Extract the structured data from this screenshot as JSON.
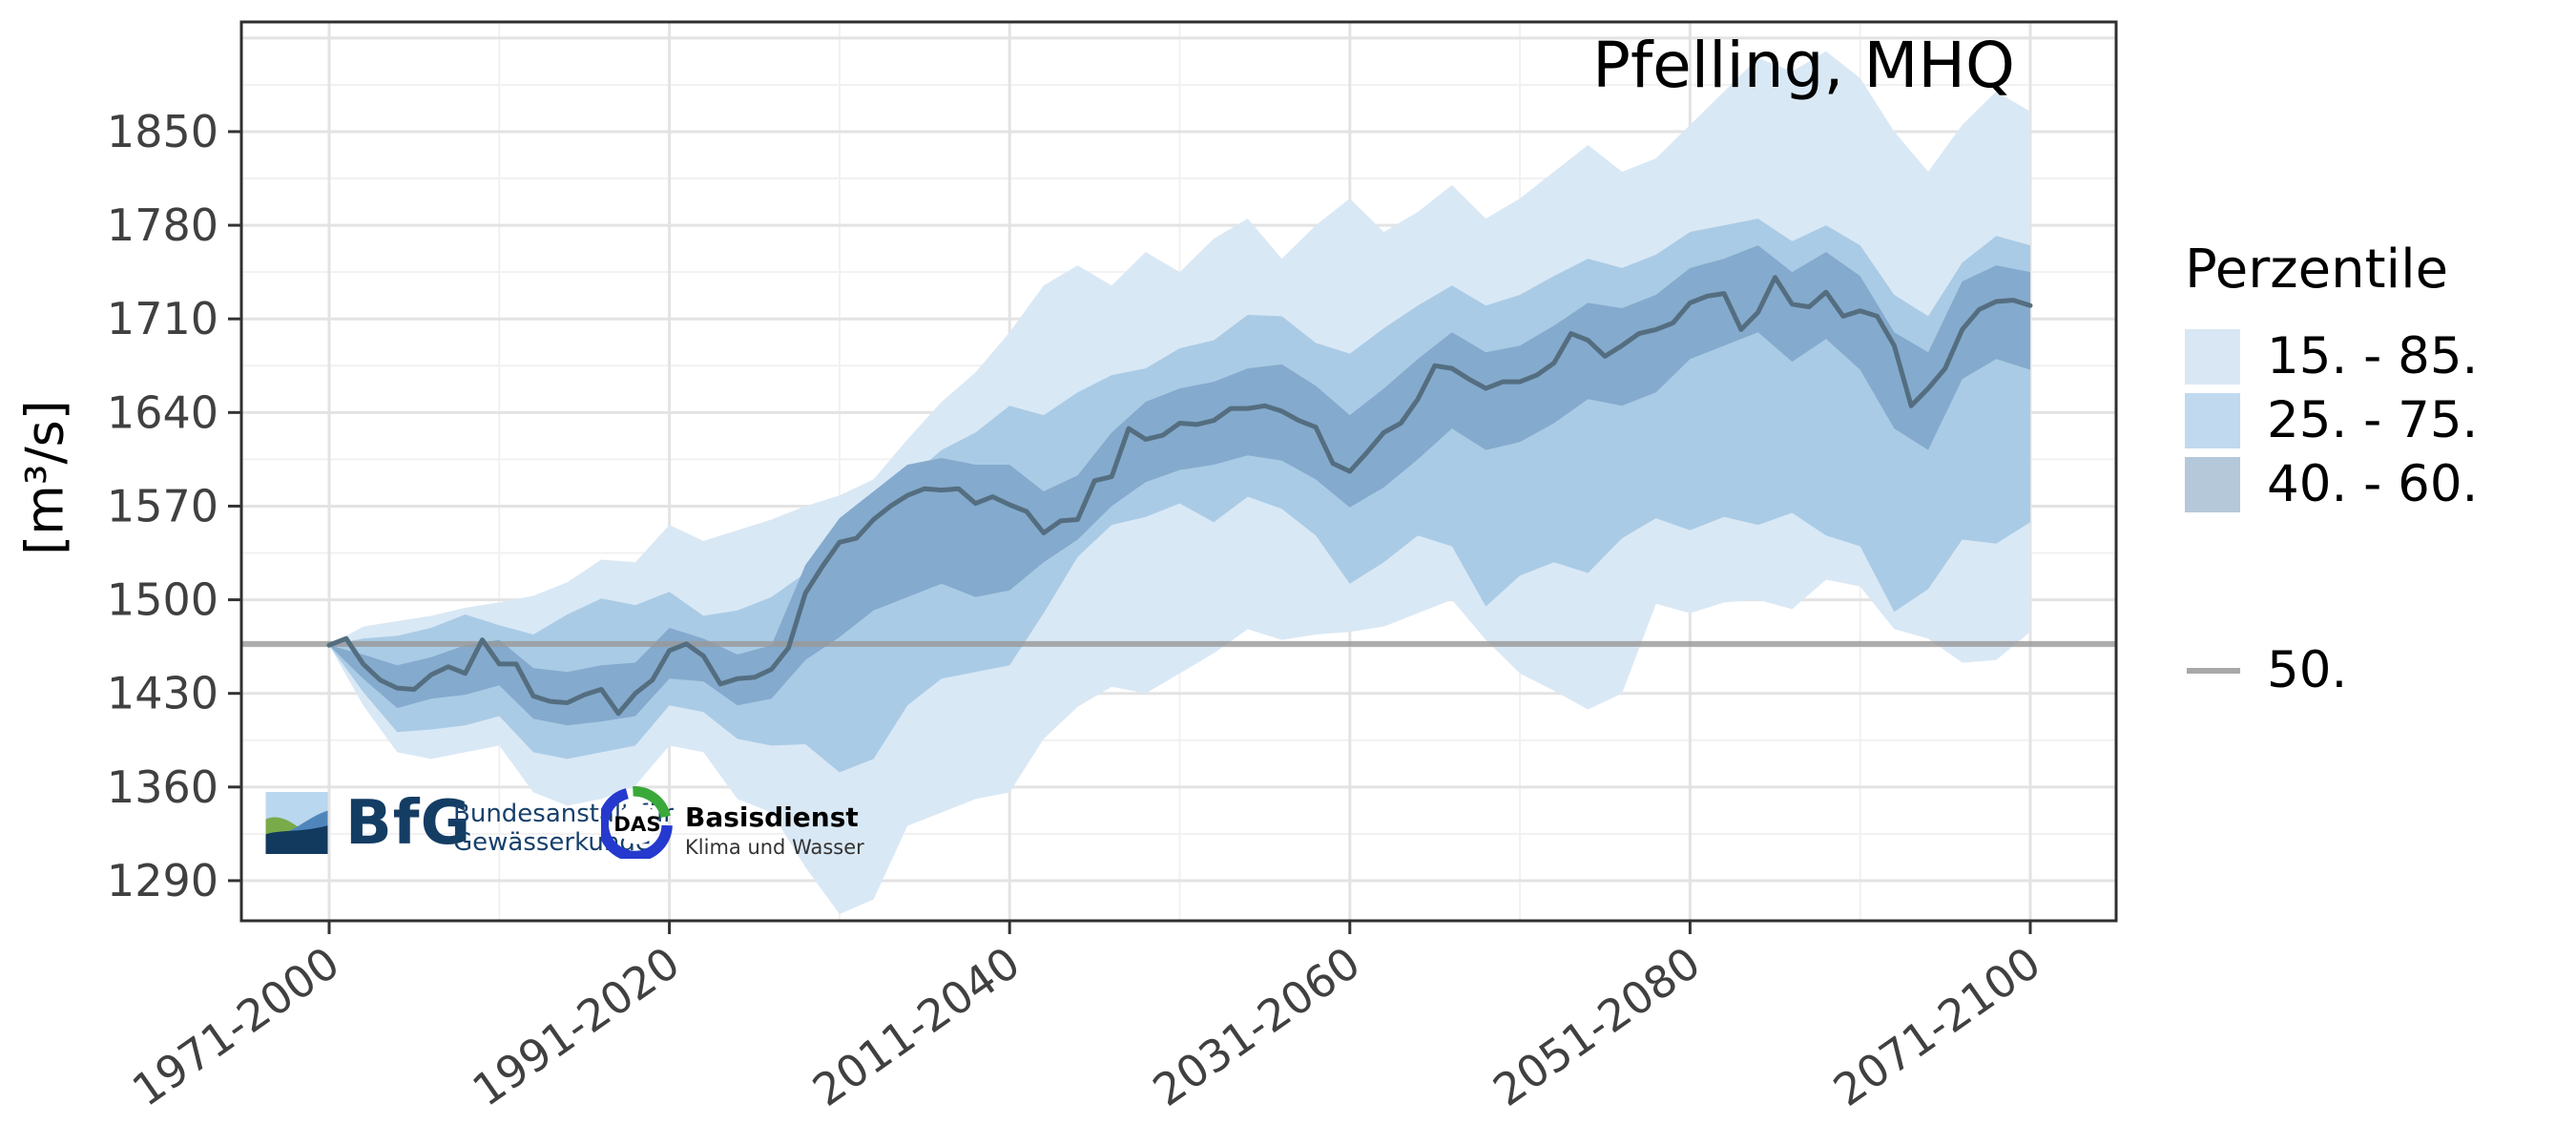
{
  "title": "Pfelling, MHQ",
  "y_axis": {
    "label": "[m³/s]"
  },
  "legend": {
    "title": "Perzentile",
    "items": [
      {
        "label": "15. - 85.",
        "color": "#d9e7f4"
      },
      {
        "label": "25. - 75.",
        "color": "#c1d9ee"
      },
      {
        "label": "40. - 60.",
        "color": "#b4c8da"
      }
    ],
    "line_item": {
      "label": "50.",
      "color": "#a8a8a8"
    }
  },
  "logos": {
    "bfg": {
      "abbr": "BfG",
      "line1": "Bundesanstalt für",
      "line2": "Gewässerkunde"
    },
    "das": {
      "abbr": "DAS",
      "line1": "Basisdienst",
      "line2": "Klima und Wasser"
    }
  },
  "colors": {
    "band_outer": "#d9e8f5",
    "band_middle": "#aacbe5",
    "band_inner": "#84aacd",
    "median_line": "#546e80",
    "reference_line": "#999999",
    "grid_major": "#e3e3e3",
    "grid_minor": "#f1f1f1",
    "panel_border": "#2f2f2f",
    "axis_text": "#404040"
  },
  "chart_data": {
    "type": "area",
    "title": "Pfelling, MHQ",
    "ylabel": "[m³/s]",
    "ylim": [
      1260,
      1932
    ],
    "y_ticks": [
      1290,
      1360,
      1430,
      1500,
      1570,
      1640,
      1710,
      1780,
      1850
    ],
    "x_axis": {
      "description": "30-year moving windows, index 0 = 1971-2000 to index 100 = 2071-2100",
      "index_range": [
        0,
        100
      ],
      "tick_indices": [
        0,
        20,
        40,
        60,
        80,
        100
      ],
      "tick_labels": [
        "1971-2000",
        "1991-2020",
        "2011-2040",
        "2031-2060",
        "2051-2080",
        "2071-2100"
      ]
    },
    "reference_line": {
      "label": "50.",
      "value": 1467
    },
    "legend_title": "Perzentile",
    "bands": [
      {
        "label": "15. - 85.",
        "lower": "p15",
        "upper": "p85"
      },
      {
        "label": "25. - 75.",
        "lower": "p25",
        "upper": "p75"
      },
      {
        "label": "40. - 60.",
        "lower": "p40",
        "upper": "p60"
      }
    ],
    "percentile_step": 2,
    "percentiles": {
      "p85": [
        1466,
        1480,
        1484,
        1488,
        1494,
        1498,
        1503,
        1513,
        1530,
        1528,
        1556,
        1544,
        1552,
        1560,
        1570,
        1578,
        1590,
        1620,
        1648,
        1670,
        1700,
        1735,
        1750,
        1735,
        1760,
        1745,
        1770,
        1785,
        1755,
        1780,
        1800,
        1775,
        1790,
        1810,
        1785,
        1800,
        1820,
        1840,
        1820,
        1830,
        1855,
        1880,
        1905,
        1895,
        1910,
        1890,
        1850,
        1820,
        1855,
        1880,
        1865
      ],
      "p75": [
        1466,
        1471,
        1473,
        1479,
        1489,
        1481,
        1474,
        1489,
        1501,
        1496,
        1506,
        1488,
        1492,
        1502,
        1520,
        1545,
        1565,
        1590,
        1612,
        1625,
        1645,
        1638,
        1655,
        1668,
        1673,
        1688,
        1694,
        1713,
        1712,
        1692,
        1684,
        1703,
        1720,
        1735,
        1720,
        1728,
        1742,
        1755,
        1748,
        1758,
        1775,
        1780,
        1785,
        1768,
        1780,
        1765,
        1728,
        1712,
        1752,
        1772,
        1765
      ],
      "p60": [
        1466,
        1459,
        1451,
        1457,
        1466,
        1470,
        1449,
        1446,
        1451,
        1453,
        1479,
        1471,
        1459,
        1466,
        1526,
        1561,
        1581,
        1601,
        1606,
        1601,
        1601,
        1581,
        1593,
        1625,
        1648,
        1658,
        1663,
        1673,
        1676,
        1660,
        1638,
        1658,
        1680,
        1700,
        1685,
        1690,
        1705,
        1722,
        1718,
        1728,
        1748,
        1755,
        1765,
        1745,
        1760,
        1742,
        1700,
        1685,
        1738,
        1750,
        1745
      ],
      "p40": [
        1466,
        1441,
        1419,
        1426,
        1429,
        1436,
        1411,
        1406,
        1409,
        1413,
        1441,
        1439,
        1421,
        1426,
        1455,
        1472,
        1492,
        1502,
        1512,
        1502,
        1507,
        1528,
        1545,
        1570,
        1588,
        1597,
        1601,
        1608,
        1604,
        1590,
        1569,
        1584,
        1605,
        1628,
        1612,
        1618,
        1632,
        1650,
        1645,
        1655,
        1680,
        1690,
        1700,
        1678,
        1695,
        1672,
        1628,
        1612,
        1665,
        1680,
        1672
      ],
      "p25": [
        1466,
        1431,
        1401,
        1403,
        1406,
        1413,
        1386,
        1381,
        1386,
        1391,
        1421,
        1416,
        1396,
        1391,
        1392,
        1371,
        1381,
        1421,
        1441,
        1446,
        1451,
        1490,
        1532,
        1556,
        1562,
        1572,
        1558,
        1577,
        1568,
        1548,
        1512,
        1528,
        1548,
        1540,
        1495,
        1518,
        1528,
        1520,
        1546,
        1561,
        1552,
        1562,
        1556,
        1565,
        1548,
        1540,
        1491,
        1508,
        1545,
        1542,
        1558
      ],
      "p15": [
        1466,
        1421,
        1386,
        1381,
        1386,
        1391,
        1356,
        1346,
        1351,
        1361,
        1391,
        1386,
        1351,
        1341,
        1300,
        1265,
        1276,
        1331,
        1341,
        1351,
        1356,
        1396,
        1420,
        1435,
        1430,
        1445,
        1460,
        1478,
        1470,
        1474,
        1476,
        1480,
        1490,
        1500,
        1470,
        1445,
        1432,
        1418,
        1430,
        1497,
        1490,
        1498,
        1500,
        1493,
        1515,
        1510,
        1478,
        1471,
        1453,
        1455,
        1476
      ]
    },
    "median": {
      "label": "50.",
      "step": 1,
      "values": [
        1466,
        1471,
        1452,
        1440,
        1434,
        1433,
        1444,
        1450,
        1445,
        1470,
        1452,
        1452,
        1428,
        1424,
        1423,
        1429,
        1433,
        1415,
        1430,
        1440,
        1462,
        1467,
        1458,
        1437,
        1441,
        1442,
        1448,
        1464,
        1505,
        1525,
        1543,
        1546,
        1560,
        1570,
        1578,
        1583,
        1582,
        1583,
        1572,
        1577,
        1571,
        1566,
        1550,
        1559,
        1560,
        1589,
        1592,
        1628,
        1620,
        1623,
        1632,
        1631,
        1634,
        1643,
        1643,
        1645,
        1641,
        1634,
        1629,
        1602,
        1596,
        1610,
        1625,
        1632,
        1650,
        1675,
        1673,
        1665,
        1658,
        1663,
        1663,
        1668,
        1677,
        1699,
        1694,
        1682,
        1690,
        1699,
        1702,
        1707,
        1722,
        1727,
        1729,
        1702,
        1715,
        1741,
        1721,
        1719,
        1730,
        1712,
        1716,
        1712,
        1690,
        1645,
        1658,
        1673,
        1702,
        1717,
        1723,
        1724,
        1720
      ]
    }
  }
}
